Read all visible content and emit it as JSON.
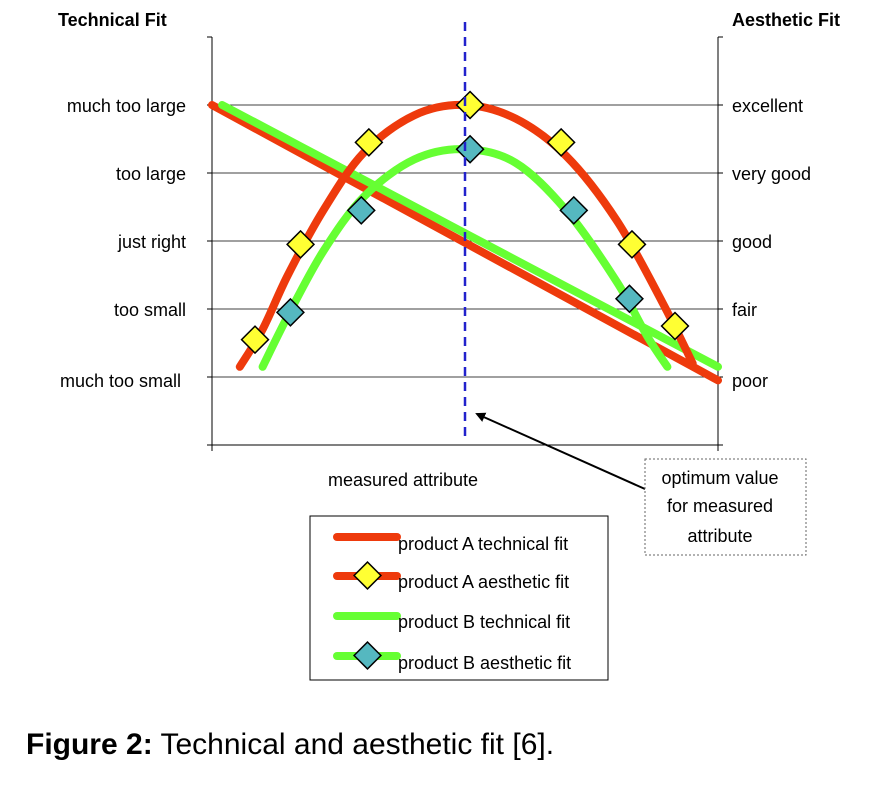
{
  "chart_data": {
    "type": "line",
    "left_axis_title": "Technical Fit",
    "right_axis_title": "Aesthetic Fit",
    "xlabel": "measured attribute",
    "left_ticks": [
      "much too small",
      "too small",
      "just right",
      "too large",
      "much too large"
    ],
    "right_ticks": [
      "poor",
      "fair",
      "good",
      "very good",
      "excellent"
    ],
    "xlim": [
      0,
      10
    ],
    "ylim": [
      -1,
      5
    ],
    "grid": true,
    "optimum_x": 5,
    "annotation": [
      "optimum value",
      "for measured",
      "attribute"
    ],
    "legend_position": "bottom-center",
    "series": [
      {
        "name": "product A technical fit",
        "color": "#ee3a0c",
        "kind": "line",
        "x": [
          0,
          10
        ],
        "y": [
          4,
          -0.05
        ]
      },
      {
        "name": "product A aesthetic fit",
        "color": "#ee3a0c",
        "kind": "curve",
        "marker_color": "#ffff33",
        "curve_x": [
          0.55,
          1.0,
          1.5,
          2.2,
          3.0,
          4.0,
          5.0,
          6.0,
          7.0,
          8.0,
          8.9,
          9.5
        ],
        "curve_y": [
          0.15,
          0.7,
          1.5,
          2.45,
          3.3,
          3.85,
          4.0,
          3.8,
          3.25,
          2.3,
          1.1,
          0.2
        ],
        "marker_x": [
          0.85,
          1.75,
          3.1,
          5.1,
          6.9,
          8.3,
          9.15
        ],
        "marker_y": [
          0.55,
          1.95,
          3.45,
          4.0,
          3.45,
          1.95,
          0.75
        ]
      },
      {
        "name": "product B technical fit",
        "color": "#66ff33",
        "kind": "line",
        "x": [
          0.2,
          10
        ],
        "y": [
          4,
          0.15
        ]
      },
      {
        "name": "product B aesthetic fit",
        "color": "#66ff33",
        "kind": "curve",
        "marker_color": "#55b8c0",
        "curve_x": [
          1.0,
          1.5,
          2.2,
          3.0,
          4.0,
          5.0,
          6.0,
          7.0,
          8.0,
          8.6,
          9.0
        ],
        "curve_y": [
          0.15,
          0.9,
          1.85,
          2.65,
          3.2,
          3.35,
          3.15,
          2.45,
          1.4,
          0.6,
          0.15
        ],
        "marker_x": [
          1.55,
          2.95,
          5.1,
          7.15,
          8.25
        ],
        "marker_y": [
          0.95,
          2.45,
          3.35,
          2.45,
          1.15
        ]
      }
    ]
  },
  "caption": {
    "label": "Figure 2:",
    "text": "Technical and aesthetic fit [6]."
  }
}
